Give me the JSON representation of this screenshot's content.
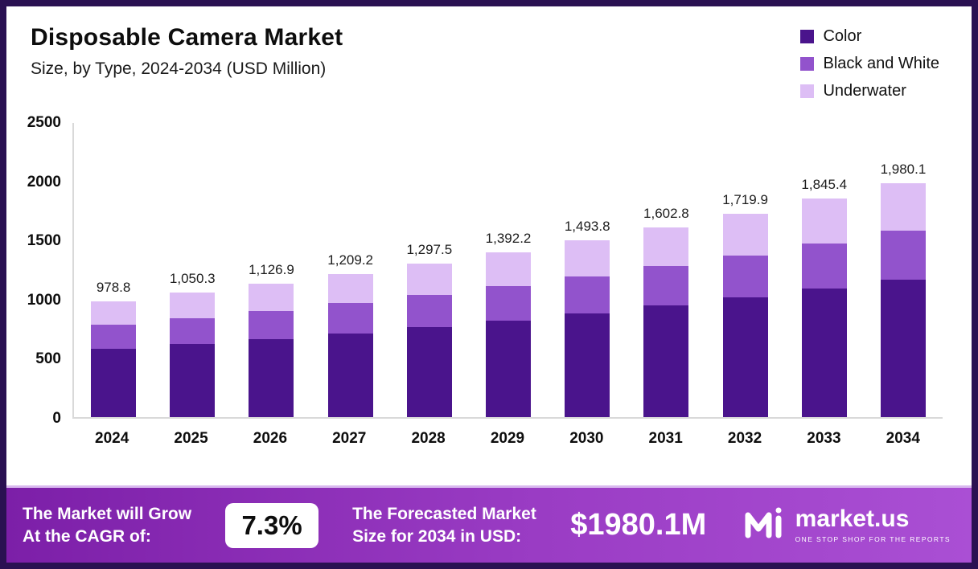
{
  "chart_data": {
    "type": "bar",
    "stacked": true,
    "title": "Disposable Camera Market",
    "subtitle": "Size, by Type, 2024-2034 (USD Million)",
    "categories": [
      "2024",
      "2025",
      "2026",
      "2027",
      "2028",
      "2029",
      "2030",
      "2031",
      "2032",
      "2033",
      "2034"
    ],
    "totals": [
      978.8,
      1050.3,
      1126.9,
      1209.2,
      1297.5,
      1392.2,
      1493.8,
      1602.8,
      1719.9,
      1845.4,
      1980.1
    ],
    "totals_labels": [
      "978.8",
      "1,050.3",
      "1,126.9",
      "1,209.2",
      "1,297.5",
      "1,392.2",
      "1,493.8",
      "1,602.8",
      "1,719.9",
      "1,845.4",
      "1,980.1"
    ],
    "series": [
      {
        "name": "Color",
        "color": "#4a148c",
        "values": [
          575.0,
          617.0,
          662.0,
          710.0,
          762.0,
          818.0,
          878.0,
          942.0,
          1010.0,
          1084.0,
          1163.0
        ]
      },
      {
        "name": "Black and White",
        "color": "#9253cc",
        "values": [
          204.0,
          219.0,
          235.0,
          252.0,
          270.5,
          290.0,
          311.0,
          333.5,
          358.0,
          384.0,
          412.0
        ]
      },
      {
        "name": "Underwater",
        "color": "#ddbef5",
        "values": [
          199.8,
          214.3,
          229.9,
          247.2,
          265.0,
          284.2,
          304.8,
          327.3,
          351.9,
          377.4,
          405.1
        ]
      }
    ],
    "ylim": [
      0,
      2500
    ],
    "yticks": [
      "2500",
      "2000",
      "1500",
      "1000",
      "500",
      "0"
    ],
    "xlabel": "",
    "ylabel": "",
    "grid": false,
    "legend_position": "top-right"
  },
  "banner": {
    "cagr_label_line1": "The Market will Grow",
    "cagr_label_line2": "At the CAGR of:",
    "cagr_value": "7.3%",
    "forecast_label_line1": "The Forecasted Market",
    "forecast_label_line2": "Size for 2034 in USD:",
    "forecast_value": "$1980.1M",
    "brand": "market.us",
    "brand_tagline": "ONE STOP SHOP FOR THE REPORTS"
  },
  "colors": {
    "frame_border": "#2a1152",
    "banner_gradient_start": "#7c1fa8",
    "banner_gradient_end": "#aa4fd4",
    "axis_line": "#d9d9d9",
    "text": "#0d0d0d"
  }
}
